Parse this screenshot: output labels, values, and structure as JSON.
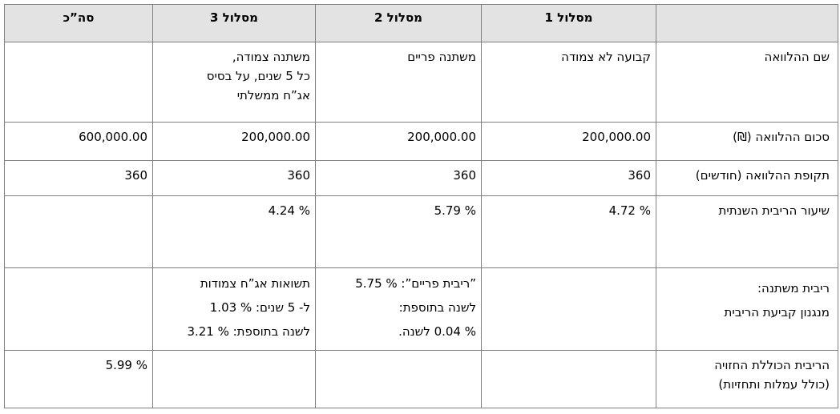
{
  "table": {
    "header": [
      "מסלול 1",
      "מסלול 2",
      "מסלול 3",
      "סה”כ"
    ],
    "rows": [
      {
        "label": [
          "שם ההלוואה"
        ],
        "track1": [
          "קבועה לא צמודה"
        ],
        "track2": [
          "משתנה פריים"
        ],
        "track3": [
          "משתנה צמודה,",
          "כל 5 שנים, על בסיס",
          "אג”ח ממשלתי"
        ]
      },
      {
        "label": [
          "סכום ההלוואה (₪)"
        ],
        "track1": [
          "200,000.00"
        ],
        "track2": [
          "200,000.00"
        ],
        "track3": [
          "200,000.00"
        ],
        "total": [
          "600,000.00"
        ]
      },
      {
        "label": [
          "תקופת ההלוואה (חודשים)"
        ],
        "track1": [
          "360"
        ],
        "track2": [
          "360"
        ],
        "track3": [
          "360"
        ],
        "total": [
          "360"
        ]
      },
      {
        "label": [
          "שיעור הריבית השנתית"
        ],
        "track1": [
          "% 4.72"
        ],
        "track2": [
          "% 5.79"
        ],
        "track3": [
          "% 4.24"
        ]
      },
      {
        "label": [
          "ריבית משתנה:",
          "מנגנון קביעת הריבית"
        ],
        "track2": [
          "”ריבית פריים”: % 5.75",
          "לשנה בתוספת:",
          "% 0.04 לשנה."
        ],
        "track3": [
          "תשואות אג”ח צמודות",
          "ל- 5 שנים: % 1.03",
          "לשנה בתוספת: % 3.21"
        ]
      },
      {
        "label": [
          "הריבית הכוללת החזויה",
          "(כולל עמלות ותחזיות)"
        ],
        "total": [
          "% 5.99"
        ]
      }
    ]
  }
}
